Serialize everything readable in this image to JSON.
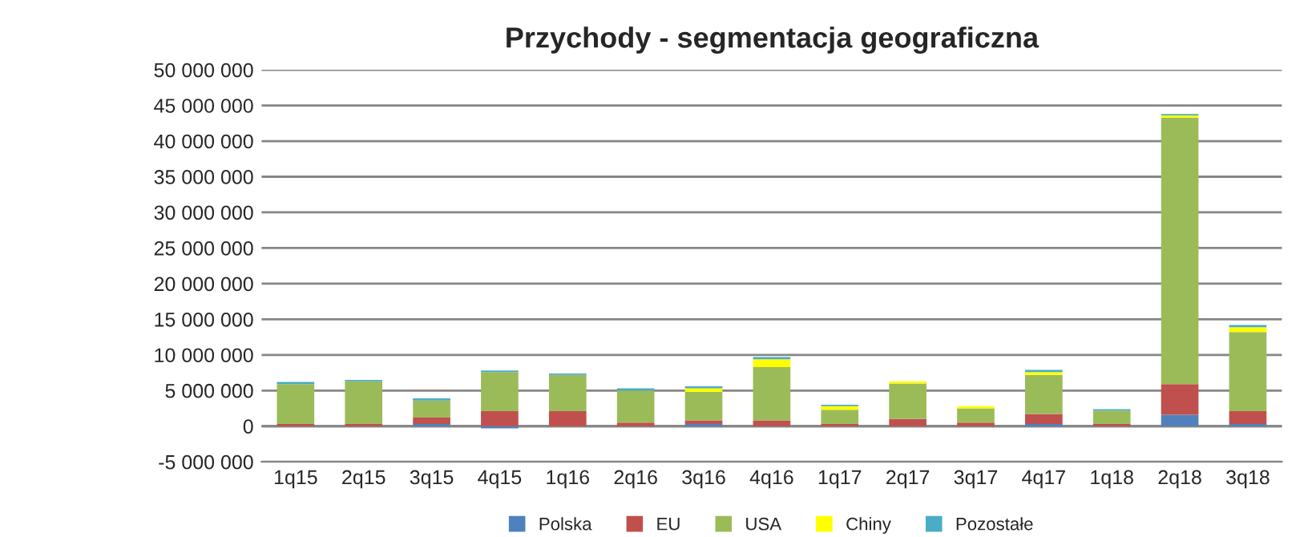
{
  "chart_data": {
    "type": "bar",
    "stacked": true,
    "title": "Przychody - segmentacja geograficzna",
    "categories": [
      "1q15",
      "2q15",
      "3q15",
      "4q15",
      "1q16",
      "2q16",
      "3q16",
      "4q16",
      "1q17",
      "2q17",
      "3q17",
      "4q17",
      "1q18",
      "2q18",
      "3q18"
    ],
    "series": [
      {
        "name": "Polska",
        "color": "#4f81bd",
        "values": [
          0,
          0,
          300000,
          -300000,
          0,
          0,
          300000,
          0,
          0,
          0,
          0,
          300000,
          0,
          1600000,
          300000
        ]
      },
      {
        "name": "EU",
        "color": "#c0504d",
        "values": [
          300000,
          300000,
          900000,
          2100000,
          2100000,
          500000,
          500000,
          800000,
          300000,
          1000000,
          500000,
          1400000,
          300000,
          4300000,
          1800000
        ]
      },
      {
        "name": "USA",
        "color": "#9bbb59",
        "values": [
          5600000,
          6000000,
          2400000,
          5500000,
          5100000,
          4500000,
          4000000,
          7500000,
          2000000,
          5000000,
          2000000,
          5500000,
          1900000,
          37400000,
          11100000
        ]
      },
      {
        "name": "Chiny",
        "color": "#ffff00",
        "values": [
          0,
          0,
          0,
          0,
          0,
          0,
          500000,
          1100000,
          500000,
          300000,
          300000,
          400000,
          0,
          300000,
          700000
        ]
      },
      {
        "name": "Pozostałe",
        "color": "#4bacc6",
        "values": [
          300000,
          200000,
          300000,
          200000,
          200000,
          300000,
          300000,
          300000,
          200000,
          0,
          0,
          300000,
          200000,
          200000,
          300000
        ]
      }
    ],
    "ylim": [
      -5000000,
      50000000
    ],
    "yticks": [
      {
        "value": -5000000,
        "label": "-5 000 000"
      },
      {
        "value": 0,
        "label": "0"
      },
      {
        "value": 5000000,
        "label": "5 000 000"
      },
      {
        "value": 10000000,
        "label": "10 000 000"
      },
      {
        "value": 15000000,
        "label": "15 000 000"
      },
      {
        "value": 20000000,
        "label": "20 000 000"
      },
      {
        "value": 25000000,
        "label": "25 000 000"
      },
      {
        "value": 30000000,
        "label": "30 000 000"
      },
      {
        "value": 35000000,
        "label": "35 000 000"
      },
      {
        "value": 40000000,
        "label": "40 000 000"
      },
      {
        "value": 45000000,
        "label": "45 000 000"
      },
      {
        "value": 50000000,
        "label": "50 000 000"
      }
    ],
    "grid": "y",
    "legend": "bottom"
  }
}
